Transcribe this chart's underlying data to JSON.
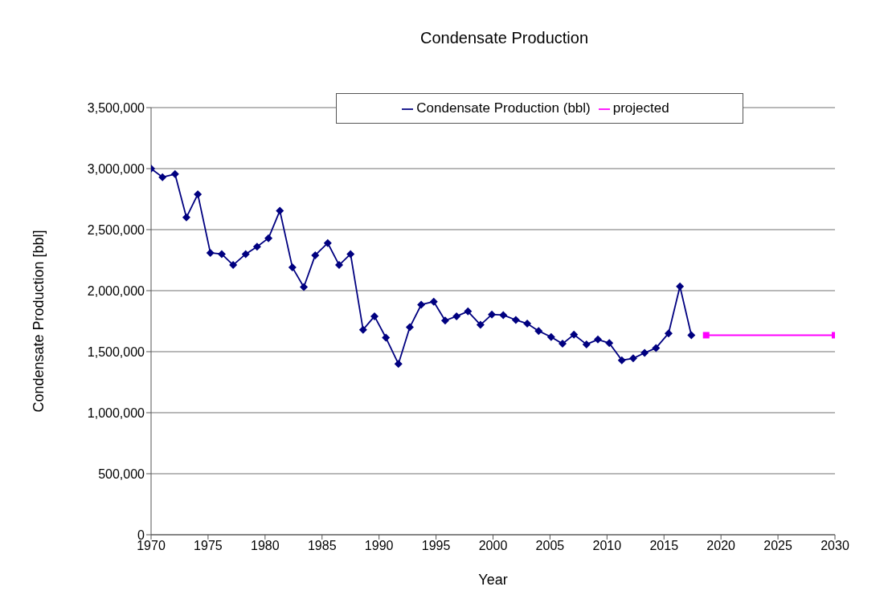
{
  "chart_data": {
    "type": "line",
    "title": "Condensate Production",
    "xlabel": "Year",
    "ylabel": "Condensate Production [bbl]",
    "xlim": [
      1970,
      2030
    ],
    "xticks": [
      1970,
      1975,
      1980,
      1985,
      1990,
      1995,
      2000,
      2005,
      2010,
      2015,
      2020,
      2025,
      2030
    ],
    "ylim": [
      0,
      3500000
    ],
    "yticks": [
      {
        "value": 0,
        "label": "0"
      },
      {
        "value": 500000,
        "label": "500,000"
      },
      {
        "value": 1000000,
        "label": "1,000,000"
      },
      {
        "value": 1500000,
        "label": "1,500,000"
      },
      {
        "value": 2000000,
        "label": "2,000,000"
      },
      {
        "value": 2500000,
        "label": "2,500,000"
      },
      {
        "value": 3000000,
        "label": "3,000,000"
      },
      {
        "value": 3500000,
        "label": "3,500,000"
      }
    ],
    "grid": "y",
    "legend": "top right",
    "series": [
      {
        "name": "Condensate Production (bbl)",
        "color": "#000080",
        "marker": "diamond",
        "x": [
          1970.0,
          1971.0,
          1972.1,
          1973.1,
          1974.1,
          1975.2,
          1976.2,
          1977.2,
          1978.3,
          1979.3,
          1980.3,
          1981.3,
          1982.4,
          1983.4,
          1984.4,
          1985.5,
          1986.5,
          1987.5,
          1988.6,
          1989.6,
          1990.6,
          1991.7,
          1992.7,
          1993.7,
          1994.8,
          1995.8,
          1996.8,
          1997.8,
          1998.9,
          1999.9,
          2000.9,
          2002.0,
          2003.0,
          2004.0,
          2005.1,
          2006.1,
          2007.1,
          2008.2,
          2009.2,
          2010.2,
          2011.3,
          2012.3,
          2013.3,
          2014.3,
          2015.4,
          2016.4,
          2017.4
        ],
        "values": [
          3000000,
          2930000,
          2955000,
          2600000,
          2790000,
          2310000,
          2300000,
          2210000,
          2300000,
          2360000,
          2430000,
          2655000,
          2190000,
          2030000,
          2290000,
          2390000,
          2210000,
          2300000,
          1680000,
          1790000,
          1615000,
          1400000,
          1700000,
          1885000,
          1910000,
          1755000,
          1790000,
          1830000,
          1720000,
          1805000,
          1800000,
          1760000,
          1730000,
          1670000,
          1620000,
          1565000,
          1640000,
          1560000,
          1600000,
          1570000,
          1430000,
          1445000,
          1490000,
          1530000,
          1650000,
          2035000,
          1635000
        ]
      },
      {
        "name": "projected",
        "color": "#ff00ff",
        "marker": "square",
        "x": [
          2018.7,
          2030
        ],
        "values": [
          1635000,
          1635000
        ]
      }
    ]
  }
}
